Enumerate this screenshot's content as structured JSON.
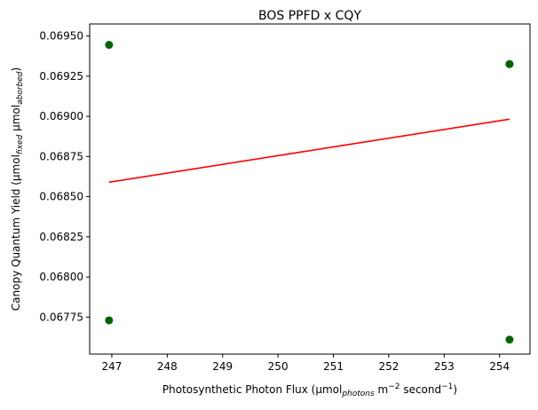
{
  "chart_data": {
    "type": "scatter",
    "title": "BOS PPFD x CQY",
    "xlabel": {
      "prefix": "Photosynthetic Photon Flux (µmol",
      "subscript": "photons",
      "middle": " m",
      "superscript1": "−2",
      "middle2": " second",
      "superscript2": "−1",
      "suffix": ")"
    },
    "ylabel": {
      "prefix": "Canopy Quantum Yield (µmol",
      "subscript1": "fixed",
      "middle": " µmol",
      "subscript2": "aborbed",
      "suffix": ")"
    },
    "xlim": [
      246.6,
      254.55
    ],
    "ylim": [
      0.06752,
      0.069575
    ],
    "x_ticks": [
      247,
      248,
      249,
      250,
      251,
      252,
      253,
      254
    ],
    "x_tick_labels": [
      "247",
      "248",
      "249",
      "250",
      "251",
      "252",
      "253",
      "254"
    ],
    "y_ticks": [
      0.06775,
      0.068,
      0.06825,
      0.0685,
      0.06875,
      0.069,
      0.06925,
      0.0695
    ],
    "y_tick_labels": [
      "0.06775",
      "0.06800",
      "0.06825",
      "0.06850",
      "0.06875",
      "0.06900",
      "0.06925",
      "0.06950"
    ],
    "grid": false,
    "series": [
      {
        "kind": "scatter",
        "color": "#006400",
        "points": [
          {
            "x": 246.95,
            "y": 0.069445
          },
          {
            "x": 246.95,
            "y": 0.06773
          },
          {
            "x": 254.18,
            "y": 0.069325
          },
          {
            "x": 254.18,
            "y": 0.069325
          },
          {
            "x": 254.18,
            "y": 0.06761
          }
        ]
      },
      {
        "kind": "line",
        "color": "#ff0000",
        "points": [
          {
            "x": 246.95,
            "y": 0.06859
          },
          {
            "x": 254.18,
            "y": 0.068982
          }
        ]
      }
    ]
  }
}
